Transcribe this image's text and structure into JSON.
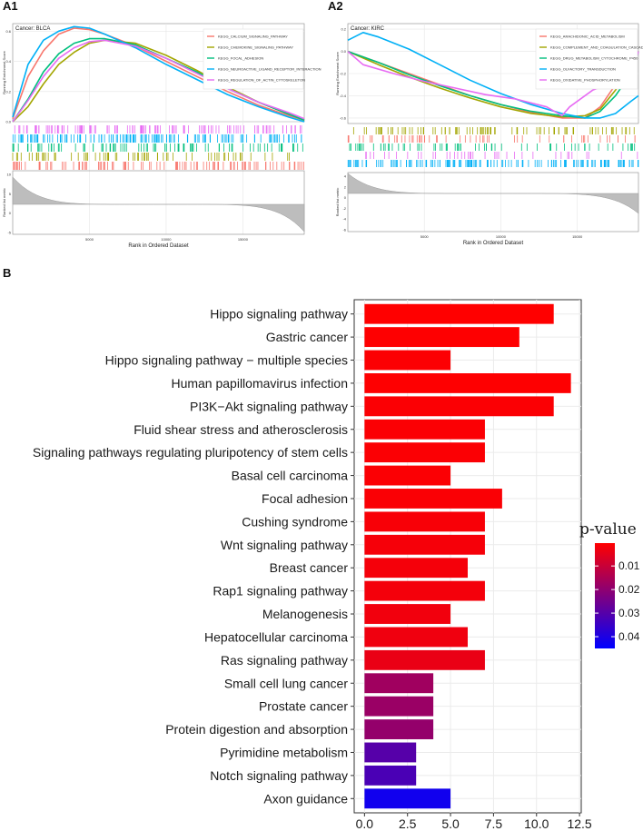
{
  "chart_data": [
    {
      "panel": "A1",
      "type": "line",
      "title": "Cancer: BLCA",
      "ylabel_top": "Running Enrichment Score",
      "ylabel_bottom": "Ranked list metric",
      "xlabel": "Rank in Ordered Dataset",
      "xticks": [
        "5000",
        "10000",
        "15000"
      ],
      "yticks_top": [
        "0.6",
        "0.4",
        "0.2",
        "0.0"
      ],
      "yticks_bottom": [
        "10",
        "5",
        "0",
        "-5"
      ],
      "xlim": [
        0,
        19000
      ],
      "ylim": [
        0,
        0.65
      ],
      "legend": [
        "KEGG_CALCIUM_SIGNALING_PATHWAY",
        "KEGG_CHEMOKINE_SIGNALING_PATHWAY",
        "KEGG_FOCAL_ADHESION",
        "KEGG_NEUROACTIVE_LIGAND_RECEPTOR_INTERACTION",
        "KEGG_REGULATION_OF_ACTIN_CYTOSKELETON"
      ],
      "colors": [
        "#f8766d",
        "#a3a500",
        "#00bf7d",
        "#00b0f6",
        "#e76bf3"
      ],
      "series": [
        {
          "name": "KEGG_CALCIUM_SIGNALING_PATHWAY",
          "x": [
            0,
            1000,
            2000,
            3000,
            4000,
            5000,
            6000,
            8000,
            10000,
            12000,
            14000,
            16000,
            18000,
            19000
          ],
          "y": [
            0.02,
            0.3,
            0.47,
            0.58,
            0.62,
            0.61,
            0.58,
            0.5,
            0.4,
            0.3,
            0.2,
            0.11,
            0.04,
            0.01
          ]
        },
        {
          "name": "KEGG_CHEMOKINE_SIGNALING_PATHWAY",
          "x": [
            0,
            1000,
            2000,
            3000,
            4000,
            5000,
            6000,
            8000,
            10000,
            12000,
            14000,
            16000,
            18000,
            19000
          ],
          "y": [
            0.0,
            0.1,
            0.25,
            0.38,
            0.46,
            0.52,
            0.54,
            0.52,
            0.44,
            0.34,
            0.23,
            0.13,
            0.05,
            0.01
          ]
        },
        {
          "name": "KEGG_FOCAL_ADHESION",
          "x": [
            0,
            1000,
            2000,
            3000,
            4000,
            5000,
            6000,
            8000,
            10000,
            12000,
            14000,
            16000,
            18000,
            19000
          ],
          "y": [
            0.0,
            0.15,
            0.33,
            0.45,
            0.52,
            0.55,
            0.55,
            0.51,
            0.42,
            0.33,
            0.22,
            0.13,
            0.05,
            0.01
          ]
        },
        {
          "name": "KEGG_NEUROACTIVE_LIGAND_RECEPTOR_INTERACTION",
          "x": [
            0,
            1000,
            2000,
            3000,
            4000,
            5000,
            6000,
            8000,
            10000,
            12000,
            14000,
            16000,
            18000,
            19000
          ],
          "y": [
            0.03,
            0.38,
            0.54,
            0.6,
            0.63,
            0.62,
            0.58,
            0.49,
            0.38,
            0.28,
            0.18,
            0.1,
            0.03,
            0.0
          ]
        },
        {
          "name": "KEGG_REGULATION_OF_ACTIN_CYTOSKELETON",
          "x": [
            0,
            1000,
            2000,
            3000,
            4000,
            5000,
            6000,
            8000,
            10000,
            12000,
            14000,
            16000,
            18000,
            19000
          ],
          "y": [
            0.0,
            0.14,
            0.3,
            0.42,
            0.49,
            0.53,
            0.54,
            0.5,
            0.42,
            0.32,
            0.22,
            0.13,
            0.06,
            0.02
          ]
        }
      ]
    },
    {
      "panel": "A2",
      "type": "line",
      "title": "Cancer: KIRC",
      "ylabel_top": "Running Enrichment Score",
      "ylabel_bottom": "Ranked list metric",
      "xlabel": "Rank in Ordered Dataset",
      "xticks": [
        "5000",
        "10000",
        "15000"
      ],
      "yticks_top": [
        "0.2",
        "0.0",
        "-0.2",
        "-0.4",
        "-0.6"
      ],
      "yticks_bottom": [
        "4",
        "2",
        "0",
        "-2",
        "-4",
        "-6"
      ],
      "xlim": [
        0,
        19000
      ],
      "ylim": [
        -0.65,
        0.25
      ],
      "legend": [
        "KEGG_ARACHIDONIC_ACID_METABOLISM",
        "KEGG_COMPLEMENT_AND_COAGULATION_CASCADES",
        "KEGG_DRUG_METABOLISM_CYTOCHROME_P450",
        "KEGG_OLFACTORY_TRANSDUCTION",
        "KEGG_OXIDATIVE_PHOSPHORYLATION"
      ],
      "colors": [
        "#f8766d",
        "#a3a500",
        "#00bf7d",
        "#00b0f6",
        "#e76bf3"
      ],
      "series": [
        {
          "name": "KEGG_ARACHIDONIC_ACID_METABOLISM",
          "x": [
            0,
            2000,
            4000,
            6000,
            8000,
            10000,
            12000,
            14000,
            15500,
            16500,
            17500,
            18500,
            19000
          ],
          "y": [
            0.0,
            -0.1,
            -0.2,
            -0.3,
            -0.4,
            -0.48,
            -0.55,
            -0.6,
            -0.6,
            -0.5,
            -0.3,
            -0.1,
            0.0
          ]
        },
        {
          "name": "KEGG_COMPLEMENT_AND_COAGULATION_CASCADES",
          "x": [
            0,
            2000,
            4000,
            6000,
            8000,
            10000,
            12000,
            14000,
            15500,
            16500,
            17500,
            18500,
            19000
          ],
          "y": [
            0.0,
            -0.12,
            -0.23,
            -0.33,
            -0.42,
            -0.5,
            -0.56,
            -0.59,
            -0.58,
            -0.52,
            -0.35,
            -0.15,
            0.0
          ]
        },
        {
          "name": "KEGG_DRUG_METABOLISM_CYTOCHROME_P450",
          "x": [
            0,
            2000,
            4000,
            6000,
            8000,
            10000,
            12000,
            14000,
            15500,
            16500,
            17500,
            18500,
            19000
          ],
          "y": [
            0.0,
            -0.1,
            -0.21,
            -0.31,
            -0.4,
            -0.48,
            -0.54,
            -0.58,
            -0.6,
            -0.54,
            -0.4,
            -0.2,
            0.0
          ]
        },
        {
          "name": "KEGG_OLFACTORY_TRANSDUCTION",
          "x": [
            0,
            1000,
            2000,
            4000,
            6000,
            8000,
            10000,
            12000,
            14000,
            15500,
            16500,
            17500,
            18500,
            19000
          ],
          "y": [
            0.1,
            0.17,
            0.13,
            0.02,
            -0.12,
            -0.26,
            -0.38,
            -0.48,
            -0.56,
            -0.6,
            -0.6,
            -0.56,
            -0.45,
            -0.4
          ]
        },
        {
          "name": "KEGG_OXIDATIVE_PHOSPHORYLATION",
          "x": [
            0,
            1000,
            3000,
            5000,
            7000,
            9000,
            11000,
            13000,
            14000,
            14500,
            16000,
            17500,
            18500,
            19000
          ],
          "y": [
            0.0,
            -0.12,
            -0.2,
            -0.27,
            -0.33,
            -0.39,
            -0.43,
            -0.5,
            -0.58,
            -0.5,
            -0.35,
            -0.27,
            -0.2,
            0.0
          ]
        }
      ]
    },
    {
      "panel": "B",
      "type": "bar",
      "orientation": "horizontal",
      "categories": [
        "Hippo signaling pathway",
        "Gastric cancer",
        "Hippo signaling pathway − multiple species",
        "Human papillomavirus infection",
        "PI3K−Akt signaling pathway",
        "Fluid shear stress and atherosclerosis",
        "Signaling pathways regulating pluripotency of stem cells",
        "Basal cell carcinoma",
        "Focal adhesion",
        "Cushing syndrome",
        "Wnt signaling pathway",
        "Breast cancer",
        "Rap1 signaling pathway",
        "Melanogenesis",
        "Hepatocellular carcinoma",
        "Ras signaling pathway",
        "Small cell lung cancer",
        "Prostate cancer",
        "Protein digestion and absorption",
        "Pyrimidine metabolism",
        "Notch signaling pathway",
        "Axon guidance"
      ],
      "values": [
        11,
        9,
        5,
        12,
        11,
        7,
        7,
        5,
        8,
        7,
        7,
        6,
        7,
        5,
        6,
        7,
        4,
        4,
        4,
        3,
        3,
        5
      ],
      "pvalues": [
        0.0003,
        0.0005,
        0.0008,
        0.0004,
        0.001,
        0.001,
        0.001,
        0.001,
        0.0012,
        0.0015,
        0.0018,
        0.002,
        0.0022,
        0.0025,
        0.003,
        0.004,
        0.017,
        0.018,
        0.019,
        0.03,
        0.032,
        0.042
      ],
      "xticks": [
        "0.0",
        "2.5",
        "5.0",
        "7.5",
        "10.0",
        "12.5"
      ],
      "xlim": [
        -0.6,
        12.6
      ],
      "legend_title": "p-value",
      "legend_ticks": [
        "0.01",
        "0.02",
        "0.03",
        "0.04"
      ],
      "legend_range": [
        0.0003,
        0.045
      ],
      "color_low": "#ff0000",
      "color_high": "#0000ff"
    }
  ]
}
